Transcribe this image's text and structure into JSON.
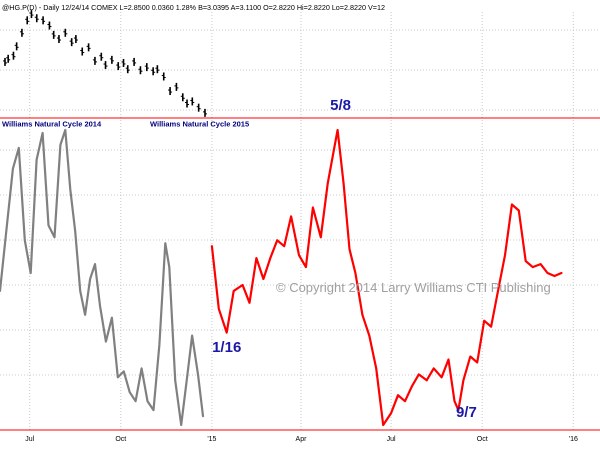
{
  "header": {
    "symbol_line": "@HG.P(D) - Daily  12/24/14  COMEX  L=2.8500  0.0360  1.28%  B=3.0395  A=3.1100  O=2.8220  Hi=2.8220  Lo=2.8220  V=12"
  },
  "labels": {
    "cycle_2014": "Williams Natural Cycle 2014",
    "cycle_2015": "Williams Natural Cycle 2015",
    "copyright": "© Copyright 2014 Larry Williams CTI Publishing"
  },
  "colors": {
    "price_bars": "#000000",
    "cycle_2014": "#808080",
    "cycle_2015": "#ff0000",
    "grid": "#c8c8c8",
    "separator": "#ff0000",
    "annotation": "#1a1aa6",
    "panel_title": "#000080",
    "watermark": "#a0a0a0"
  },
  "chart_data": [
    {
      "type": "bar",
      "name": "price",
      "note": "daily OHLC bars (no price scale shown)",
      "x": [
        "2014-06-16",
        "2014-06-19",
        "2014-06-24",
        "2014-06-27",
        "2014-07-02",
        "2014-07-07",
        "2014-07-11",
        "2014-07-16",
        "2014-07-22",
        "2014-07-28",
        "2014-08-01",
        "2014-08-06",
        "2014-08-12",
        "2014-08-18",
        "2014-08-22",
        "2014-08-28",
        "2014-09-03",
        "2014-09-09",
        "2014-09-15",
        "2014-09-19",
        "2014-09-25",
        "2014-10-01",
        "2014-10-06",
        "2014-10-10",
        "2014-10-16",
        "2014-10-22",
        "2014-10-28",
        "2014-11-03",
        "2014-11-07",
        "2014-11-13",
        "2014-11-19",
        "2014-11-25",
        "2014-12-01",
        "2014-12-05",
        "2014-12-10",
        "2014-12-16",
        "2014-12-22"
      ],
      "values": [
        52,
        55,
        58,
        67,
        80,
        92,
        98,
        94,
        92,
        87,
        78,
        74,
        80,
        71,
        74,
        62,
        66,
        53,
        57,
        49,
        54,
        48,
        51,
        45,
        52,
        44,
        47,
        43,
        45,
        38,
        24,
        28,
        18,
        12,
        14,
        8,
        3
      ]
    },
    {
      "type": "line",
      "series": [
        {
          "name": "Williams Natural Cycle 2014",
          "x": [
            "2014-06-01",
            "2014-06-08",
            "2014-06-14",
            "2014-06-20",
            "2014-06-26",
            "2014-07-02",
            "2014-07-08",
            "2014-07-14",
            "2014-07-20",
            "2014-07-26",
            "2014-08-01",
            "2014-08-06",
            "2014-08-11",
            "2014-08-16",
            "2014-08-21",
            "2014-08-26",
            "2014-08-31",
            "2014-09-05",
            "2014-09-10",
            "2014-09-16",
            "2014-09-22",
            "2014-09-28",
            "2014-10-04",
            "2014-10-10",
            "2014-10-16",
            "2014-10-22",
            "2014-10-28",
            "2014-11-03",
            "2014-11-09",
            "2014-11-15",
            "2014-11-19",
            "2014-11-25",
            "2014-12-01",
            "2014-12-07",
            "2014-12-12",
            "2014-12-18",
            "2014-12-23"
          ],
          "values": [
            46,
            68,
            87,
            94,
            63,
            52,
            90,
            99,
            68,
            64,
            95,
            100,
            80,
            66,
            46,
            38,
            50,
            55,
            41,
            29,
            37,
            17,
            19,
            12,
            9,
            20,
            9,
            6,
            28,
            62,
            54,
            16,
            1,
            17,
            31,
            18,
            4
          ]
        },
        {
          "name": "Williams Natural Cycle 2015",
          "x": [
            "2015-01-01",
            "2015-01-08",
            "2015-01-16",
            "2015-01-23",
            "2015-02-01",
            "2015-02-08",
            "2015-02-15",
            "2015-02-22",
            "2015-03-01",
            "2015-03-08",
            "2015-03-15",
            "2015-03-22",
            "2015-03-30",
            "2015-04-06",
            "2015-04-13",
            "2015-04-21",
            "2015-04-28",
            "2015-05-04",
            "2015-05-08",
            "2015-05-14",
            "2015-05-20",
            "2015-05-26",
            "2015-06-02",
            "2015-06-09",
            "2015-06-16",
            "2015-06-23",
            "2015-07-01",
            "2015-07-08",
            "2015-07-15",
            "2015-07-22",
            "2015-07-29",
            "2015-08-06",
            "2015-08-13",
            "2015-08-21",
            "2015-08-28",
            "2015-09-03",
            "2015-09-07",
            "2015-09-12",
            "2015-09-19",
            "2015-09-26",
            "2015-10-03",
            "2015-10-10",
            "2015-10-17",
            "2015-10-24",
            "2015-10-31",
            "2015-11-07",
            "2015-11-14",
            "2015-11-21",
            "2015-11-29",
            "2015-12-06",
            "2015-12-13",
            "2015-12-20"
          ],
          "values": [
            61,
            40,
            32,
            46,
            48,
            42,
            57,
            50,
            57,
            63,
            61,
            71,
            58,
            54,
            74,
            64,
            82,
            93,
            100,
            82,
            60,
            52,
            38,
            31,
            20,
            1,
            5,
            11,
            9,
            14,
            18,
            16,
            20,
            17,
            23,
            9,
            6,
            16,
            24,
            22,
            36,
            34,
            46,
            58,
            75,
            73,
            56,
            54,
            55,
            52,
            51,
            52
          ]
        }
      ],
      "annotations": [
        {
          "text": "1/16",
          "x": "2015-01-16"
        },
        {
          "text": "5/8",
          "x": "2015-05-08"
        },
        {
          "text": "9/7",
          "x": "2015-09-07"
        }
      ],
      "x_ticks": [
        "Jul",
        "Oct",
        "'15",
        "Apr",
        "Jul",
        "Oct",
        "'16"
      ],
      "x_tick_dates": [
        "2014-07-01",
        "2014-10-01",
        "2015-01-01",
        "2015-04-01",
        "2015-07-01",
        "2015-10-01",
        "2016-01-01"
      ],
      "x_range": [
        "2014-06-01",
        "2016-01-28"
      ],
      "y_range": [
        0,
        100
      ],
      "grid": true
    }
  ]
}
